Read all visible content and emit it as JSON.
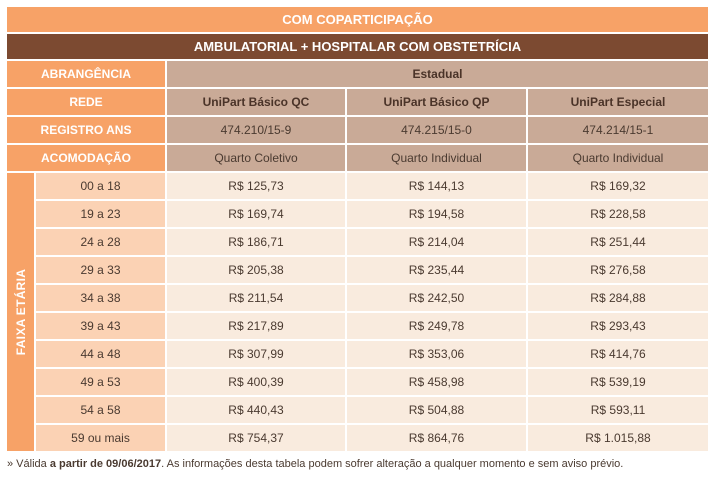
{
  "title": "COM COPARTICIPAÇÃO",
  "subtitle": "AMBULATORIAL + HOSPITALAR COM OBSTETRÍCIA",
  "abrangencia": {
    "label": "ABRANGÊNCIA",
    "value": "Estadual"
  },
  "rede": {
    "label": "REDE",
    "plans": [
      "UniPart Básico QC",
      "UniPart Básico QP",
      "UniPart Especial"
    ]
  },
  "registro": {
    "label": "REGISTRO ANS",
    "values": [
      "474.210/15-9",
      "474.215/15-0",
      "474.214/15-1"
    ]
  },
  "acomodacao": {
    "label": "ACOMODAÇÃO",
    "values": [
      "Quarto Coletivo",
      "Quarto Individual",
      "Quarto Individual"
    ]
  },
  "faixa_label": "FAIXA ETÁRIA",
  "rows": [
    {
      "age": "00 a 18",
      "prices": [
        "R$ 125,73",
        "R$ 144,13",
        "R$ 169,32"
      ]
    },
    {
      "age": "19 a 23",
      "prices": [
        "R$ 169,74",
        "R$ 194,58",
        "R$ 228,58"
      ]
    },
    {
      "age": "24 a 28",
      "prices": [
        "R$ 186,71",
        "R$ 214,04",
        "R$ 251,44"
      ]
    },
    {
      "age": "29 a 33",
      "prices": [
        "R$ 205,38",
        "R$ 235,44",
        "R$ 276,58"
      ]
    },
    {
      "age": "34 a 38",
      "prices": [
        "R$ 211,54",
        "R$ 242,50",
        "R$ 284,88"
      ]
    },
    {
      "age": "39 a 43",
      "prices": [
        "R$ 217,89",
        "R$ 249,78",
        "R$ 293,43"
      ]
    },
    {
      "age": "44 a 48",
      "prices": [
        "R$ 307,99",
        "R$ 353,06",
        "R$ 414,76"
      ]
    },
    {
      "age": "49 a 53",
      "prices": [
        "R$ 400,39",
        "R$ 458,98",
        "R$ 539,19"
      ]
    },
    {
      "age": "54 a 58",
      "prices": [
        "R$ 440,43",
        "R$ 504,88",
        "R$ 593,11"
      ]
    },
    {
      "age": "59 ou mais",
      "prices": [
        "R$ 754,37",
        "R$ 864,76",
        "R$ 1.015,88"
      ]
    }
  ],
  "footnote": {
    "prefix": "» Válida ",
    "bold": "a partir de 09/06/2017",
    "suffix": ". As informações desta tabela podem sofrer alteração a qualquer momento e sem aviso prévio."
  },
  "colors": {
    "orange": "#f7a267",
    "brown": "#7c4a31",
    "taupe": "#c9aa97",
    "peach": "#fbd2b4",
    "cream": "#f9ebde"
  }
}
